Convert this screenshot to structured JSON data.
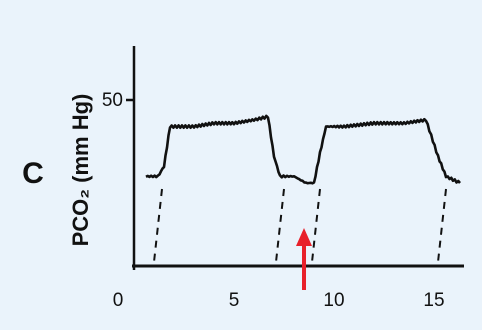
{
  "chart_data": {
    "type": "line",
    "panel_label": "C",
    "title": "",
    "xlabel": "",
    "ylabel": "PCO₂ (mm Hg)",
    "xlim": [
      0,
      16.5
    ],
    "ylim": [
      0,
      50
    ],
    "x_ticks": [
      0,
      5,
      10,
      15
    ],
    "x_tick_labels": [
      "0",
      "5",
      "10",
      "15"
    ],
    "y_ticks": [
      50
    ],
    "y_tick_labels": [
      "50"
    ],
    "grid": false,
    "series": [
      {
        "x": [
          0.6,
          1.2,
          1.5,
          1.8,
          3,
          4,
          5,
          6,
          6.7,
          7.0,
          7.3,
          8.0,
          8.6,
          9.0,
          9.3,
          9.6,
          10.5,
          12,
          13.5,
          14.6,
          15.2,
          15.6,
          16.3
        ],
        "y": [
          27,
          27,
          30,
          42,
          42,
          43,
          43,
          44,
          45,
          33,
          27,
          27,
          25,
          25,
          34,
          42,
          42,
          43,
          43,
          44,
          33,
          27,
          25
        ]
      }
    ],
    "transitions_x": [
      1.1,
      7.2,
      9.0,
      15.3
    ],
    "annotations": [
      {
        "type": "arrow",
        "x": 8.5,
        "color": "#e8202a"
      }
    ]
  }
}
